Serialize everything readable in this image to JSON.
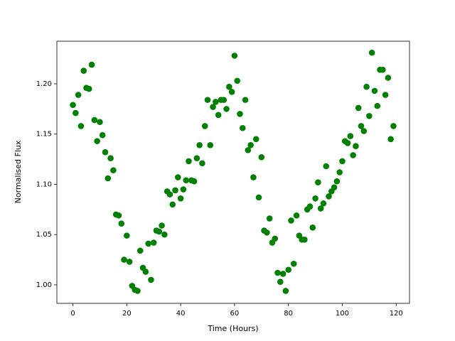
{
  "chart_data": {
    "type": "scatter",
    "x_label": "Time (Hours)",
    "y_label": "Normalised Flux",
    "color": "#008000",
    "x": [
      0,
      1,
      2,
      3,
      4,
      5,
      6,
      7,
      8,
      9,
      10,
      11,
      12,
      13,
      14,
      15,
      16,
      17,
      18,
      19,
      20,
      21,
      22,
      23,
      24,
      25,
      26,
      27,
      28,
      29,
      30,
      31,
      32,
      33,
      34,
      35,
      36,
      37,
      38,
      39,
      40,
      41,
      42,
      43,
      44,
      45,
      46,
      47,
      48,
      49,
      50,
      51,
      52,
      53,
      54,
      55,
      56,
      57,
      58,
      59,
      60,
      61,
      62,
      63,
      64,
      65,
      66,
      67,
      68,
      69,
      70,
      71,
      72,
      73,
      74,
      75,
      76,
      77,
      78,
      79,
      80,
      81,
      82,
      83,
      84,
      85,
      86,
      87,
      88,
      89,
      90,
      91,
      92,
      93,
      94,
      95,
      96,
      97,
      98,
      99,
      100,
      101,
      102,
      103,
      104,
      105,
      106,
      107,
      108,
      109,
      110,
      111,
      112,
      113,
      114,
      115,
      116,
      117,
      118,
      119
    ],
    "values": [
      1.179,
      1.171,
      1.189,
      1.158,
      1.213,
      1.196,
      1.195,
      1.219,
      1.164,
      1.143,
      1.162,
      1.149,
      1.132,
      1.106,
      1.126,
      1.114,
      1.07,
      1.069,
      1.061,
      1.025,
      1.049,
      1.023,
      0.999,
      0.995,
      0.994,
      1.034,
      1.017,
      1.013,
      1.041,
      1.005,
      1.042,
      1.054,
      1.053,
      1.059,
      1.05,
      1.093,
      1.09,
      1.08,
      1.094,
      1.107,
      1.086,
      1.095,
      1.104,
      1.123,
      1.104,
      1.103,
      1.126,
      1.139,
      1.121,
      1.158,
      1.184,
      1.139,
      1.177,
      1.182,
      1.169,
      1.184,
      1.184,
      1.175,
      1.197,
      1.192,
      1.228,
      1.203,
      1.17,
      1.156,
      1.184,
      1.134,
      1.139,
      1.107,
      1.145,
      1.087,
      1.127,
      1.054,
      1.052,
      1.066,
      1.042,
      1.046,
      1.012,
      1.003,
      1.011,
      0.994,
      1.015,
      1.064,
      1.021,
      1.069,
      1.049,
      1.045,
      1.045,
      1.075,
      1.078,
      1.057,
      1.086,
      1.102,
      1.076,
      1.081,
      1.118,
      1.088,
      1.093,
      1.097,
      1.103,
      1.112,
      1.123,
      1.143,
      1.141,
      1.148,
      1.129,
      1.138,
      1.176,
      1.158,
      1.153,
      1.197,
      1.168,
      1.231,
      1.193,
      1.178,
      1.214,
      1.214,
      1.189,
      1.206,
      1.145,
      1.158
    ],
    "xlim": [
      -5.95,
      124.95
    ],
    "ylim": [
      0.9816,
      1.2424
    ],
    "xticks": [
      0,
      20,
      40,
      60,
      80,
      100,
      120
    ],
    "yticks": [
      {
        "value": 1.0,
        "label": "1.00"
      },
      {
        "value": 1.05,
        "label": "1.05"
      },
      {
        "value": 1.1,
        "label": "1.10"
      },
      {
        "value": 1.15,
        "label": "1.15"
      },
      {
        "value": 1.2,
        "label": "1.20"
      }
    ]
  }
}
